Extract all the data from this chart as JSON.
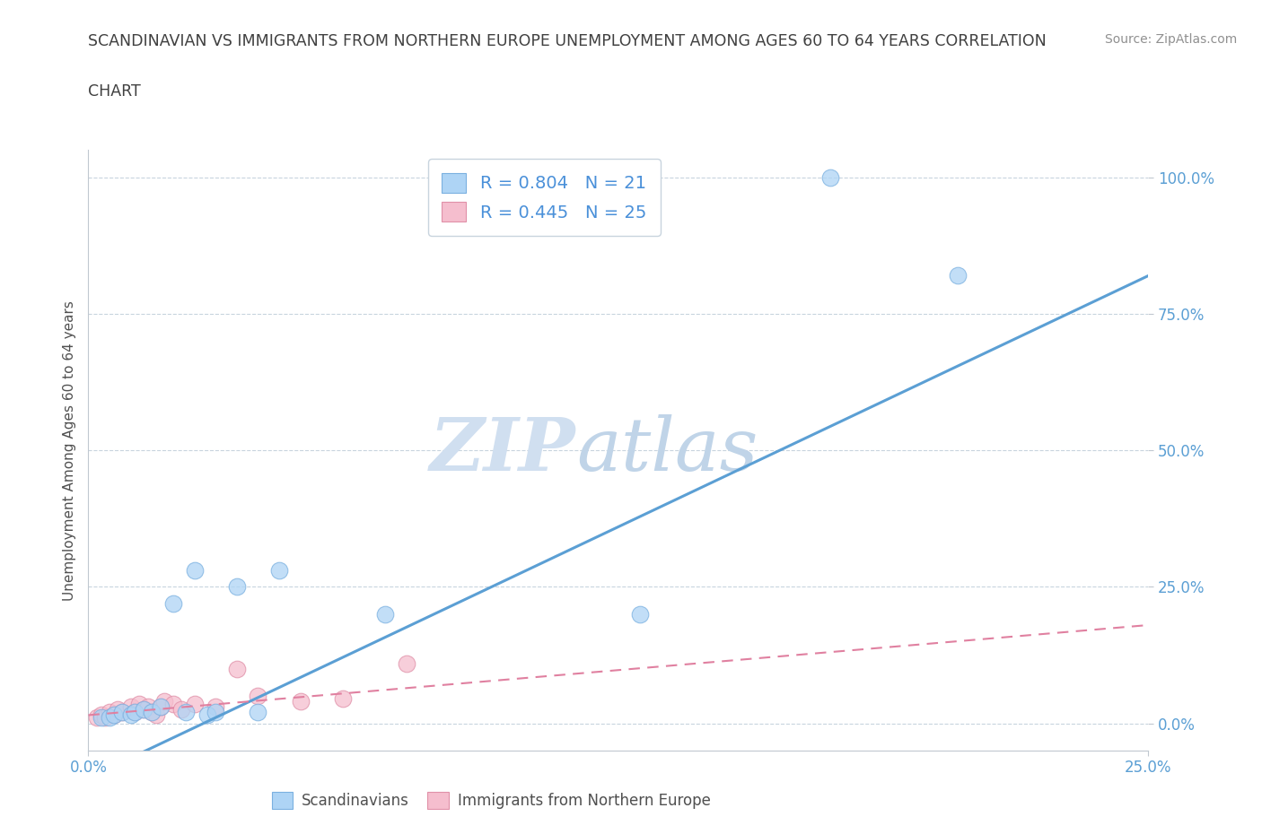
{
  "title_line1": "SCANDINAVIAN VS IMMIGRANTS FROM NORTHERN EUROPE UNEMPLOYMENT AMONG AGES 60 TO 64 YEARS CORRELATION",
  "title_line2": "CHART",
  "source": "Source: ZipAtlas.com",
  "ylabel": "Unemployment Among Ages 60 to 64 years",
  "xlim": [
    0.0,
    25.0
  ],
  "ylim": [
    -5.0,
    105.0
  ],
  "yticks": [
    0.0,
    25.0,
    50.0,
    75.0,
    100.0
  ],
  "xticks": [
    0.0,
    25.0
  ],
  "scandinavians_x": [
    0.3,
    0.5,
    0.6,
    0.8,
    1.0,
    1.1,
    1.3,
    1.5,
    1.7,
    2.0,
    2.3,
    2.5,
    2.8,
    3.0,
    3.5,
    4.0,
    4.5,
    7.0,
    13.0,
    17.5,
    20.5
  ],
  "scandinavians_y": [
    1.0,
    1.0,
    1.5,
    2.0,
    1.5,
    2.0,
    2.5,
    2.0,
    3.0,
    22.0,
    2.0,
    28.0,
    1.5,
    2.0,
    25.0,
    2.0,
    28.0,
    20.0,
    20.0,
    100.0,
    82.0
  ],
  "immigrants_x": [
    0.2,
    0.3,
    0.4,
    0.5,
    0.6,
    0.7,
    0.8,
    1.0,
    1.1,
    1.2,
    1.3,
    1.4,
    1.5,
    1.6,
    1.7,
    1.8,
    2.0,
    2.2,
    2.5,
    3.0,
    3.5,
    4.0,
    5.0,
    6.0,
    7.5
  ],
  "immigrants_y": [
    1.0,
    1.5,
    1.0,
    2.0,
    1.5,
    2.5,
    2.0,
    3.0,
    2.0,
    3.5,
    2.5,
    3.0,
    2.0,
    1.5,
    3.0,
    4.0,
    3.5,
    2.5,
    3.5,
    3.0,
    10.0,
    5.0,
    4.0,
    4.5,
    11.0
  ],
  "scand_line_points": [
    [
      0.0,
      -10.0
    ],
    [
      25.0,
      82.0
    ]
  ],
  "immig_line_points": [
    [
      0.0,
      1.5
    ],
    [
      25.0,
      18.0
    ]
  ],
  "R_scand": 0.804,
  "N_scand": 21,
  "R_immig": 0.445,
  "N_immig": 25,
  "scand_color": "#aed4f5",
  "immig_color": "#f5bece",
  "scand_edge_color": "#7ab0e0",
  "immig_edge_color": "#e090a8",
  "scand_line_color": "#5b9fd4",
  "immig_line_color": "#e080a0",
  "legend_r_color": "#4a90d9",
  "watermark_zip_color": "#d0dff0",
  "watermark_atlas_color": "#c0d4e8",
  "background_color": "#ffffff",
  "grid_color": "#c8d4de",
  "title_color": "#404040",
  "source_color": "#909090",
  "axis_tick_color": "#5b9fd4",
  "ylabel_color": "#505050"
}
